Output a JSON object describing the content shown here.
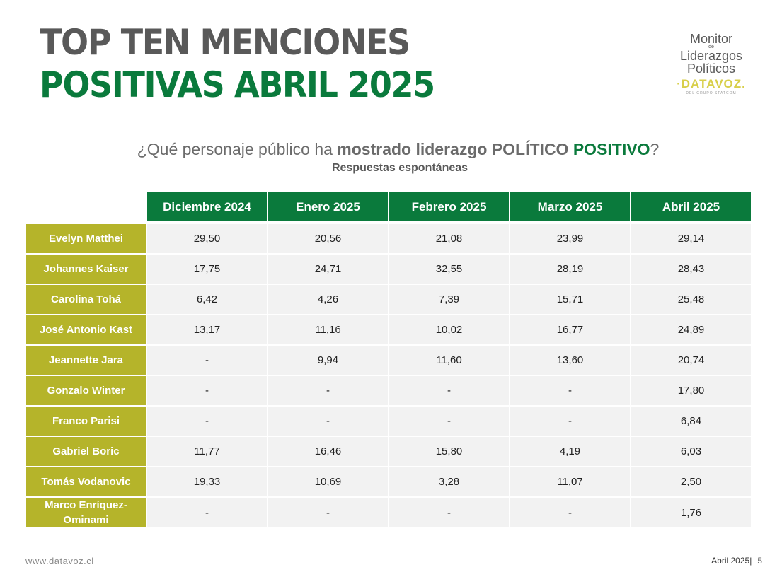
{
  "title": {
    "line1": "TOP TEN MENCIONES",
    "line2": "POSITIVAS ABRIL 2025"
  },
  "logo": {
    "line1": "Monitor",
    "de": "de",
    "line2": "Liderazgos",
    "line3": "Políticos",
    "brand": "·DATAVOZ.",
    "sub": "DEL GRUPO STATCOM"
  },
  "question": {
    "part1": "¿Qué personaje público ha ",
    "part2": "mostrado liderazgo POLÍTICO ",
    "part3": "POSITIVO",
    "part4": "?",
    "sub": "Respuestas espontáneas"
  },
  "table": {
    "headers": [
      "Diciembre 2024",
      "Enero 2025",
      "Febrero 2025",
      "Marzo 2025",
      "Abril 2025"
    ],
    "rows": [
      {
        "name": "Evelyn Matthei",
        "values": [
          "29,50",
          "20,56",
          "21,08",
          "23,99",
          "29,14"
        ]
      },
      {
        "name": "Johannes Kaiser",
        "values": [
          "17,75",
          "24,71",
          "32,55",
          "28,19",
          "28,43"
        ]
      },
      {
        "name": "Carolina Tohá",
        "values": [
          "6,42",
          "4,26",
          "7,39",
          "15,71",
          "25,48"
        ]
      },
      {
        "name": "José Antonio Kast",
        "values": [
          "13,17",
          "11,16",
          "10,02",
          "16,77",
          "24,89"
        ]
      },
      {
        "name": "Jeannette Jara",
        "values": [
          "-",
          "9,94",
          "11,60",
          "13,60",
          "20,74"
        ]
      },
      {
        "name": "Gonzalo Winter",
        "values": [
          "-",
          "-",
          "-",
          "-",
          "17,80"
        ]
      },
      {
        "name": "Franco Parisi",
        "values": [
          "-",
          "-",
          "-",
          "-",
          "6,84"
        ]
      },
      {
        "name": "Gabriel Boric",
        "values": [
          "11,77",
          "16,46",
          "15,80",
          "4,19",
          "6,03"
        ]
      },
      {
        "name": "Tomás Vodanovic",
        "values": [
          "19,33",
          "10,69",
          "3,28",
          "11,07",
          "2,50"
        ]
      },
      {
        "name": "Marco Enríquez-Ominami",
        "values": [
          "-",
          "-",
          "-",
          "-",
          "1,76"
        ]
      }
    ]
  },
  "footer": {
    "url": "www.datavoz.cl",
    "date": "Abril 2025|",
    "page": "5"
  },
  "colors": {
    "header_green": "#0a7a3c",
    "name_olive": "#b5b42a",
    "cell_gray": "#f2f2f2",
    "title_gray": "#595959"
  }
}
